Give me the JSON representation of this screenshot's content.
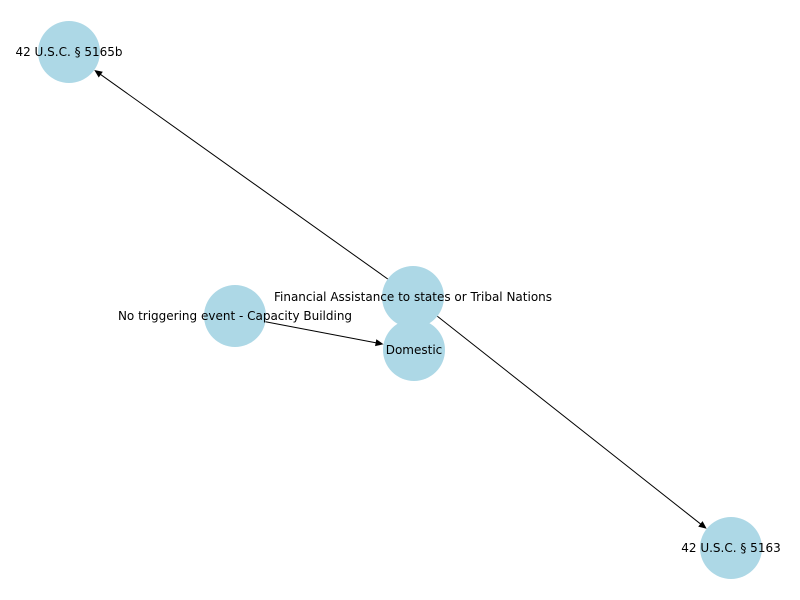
{
  "diagram": {
    "node_color": "#add8e6",
    "edge_color": "#000000",
    "nodes": [
      {
        "id": "n-5165b",
        "label": "42 U.S.C. § 5165b"
      },
      {
        "id": "n-financial",
        "label": "Financial Assistance to states or Tribal Nations"
      },
      {
        "id": "n-no-trigger",
        "label": "No triggering event - Capacity Building"
      },
      {
        "id": "n-domestic",
        "label": "Domestic"
      },
      {
        "id": "n-5163",
        "label": "42 U.S.C. §  5163"
      }
    ],
    "edges": [
      {
        "from": "n-financial",
        "to": "n-5165b"
      },
      {
        "from": "n-financial",
        "to": "n-5163"
      },
      {
        "from": "n-no-trigger",
        "to": "n-domestic"
      }
    ]
  }
}
